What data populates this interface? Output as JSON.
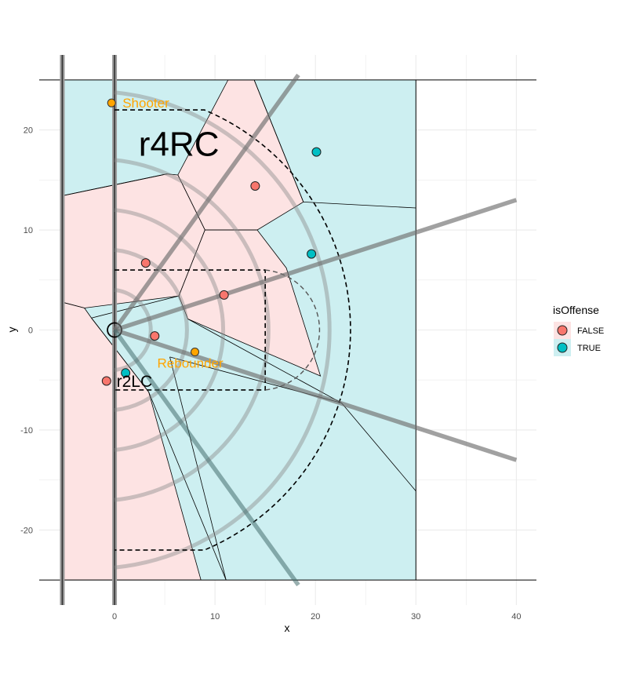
{
  "chart_data": {
    "type": "scatter",
    "xlabel": "x",
    "ylabel": "y",
    "xlim": [
      -7.5,
      42
    ],
    "ylim": [
      -27.5,
      27.5
    ],
    "x_ticks": [
      0,
      10,
      20,
      30,
      40
    ],
    "y_ticks": [
      -20,
      -10,
      0,
      10,
      20
    ],
    "grid": true,
    "legend": {
      "title": "isOffense",
      "position": "right",
      "entries": [
        {
          "label": "FALSE",
          "fill": "#f8766d",
          "shade": "#fde3e3"
        },
        {
          "label": "TRUE",
          "fill": "#00bfc4",
          "shade": "#cdeff1"
        }
      ]
    },
    "points": [
      {
        "x": 14.0,
        "y": 14.4,
        "isOffense": "FALSE"
      },
      {
        "x": 3.1,
        "y": 6.7,
        "isOffense": "FALSE"
      },
      {
        "x": 10.9,
        "y": 3.5,
        "isOffense": "FALSE"
      },
      {
        "x": 4.0,
        "y": -0.6,
        "isOffense": "FALSE"
      },
      {
        "x": -0.8,
        "y": -5.1,
        "isOffense": "FALSE"
      },
      {
        "x": 20.1,
        "y": 17.8,
        "isOffense": "TRUE"
      },
      {
        "x": 19.6,
        "y": 7.6,
        "isOffense": "TRUE"
      },
      {
        "x": 1.1,
        "y": -4.3,
        "isOffense": "TRUE"
      }
    ],
    "highlights": [
      {
        "x": -0.3,
        "y": 22.7,
        "label": "Shooter",
        "color": "#ffa500"
      },
      {
        "x": 8.0,
        "y": -2.2,
        "label": "Rebounder",
        "color": "#ffa500"
      }
    ],
    "annotations": [
      {
        "text": "r4RC",
        "x": 2.4,
        "y": 17.4,
        "size": "large"
      },
      {
        "text": "r2LC",
        "x": 0.2,
        "y": -5.7,
        "size": "medium"
      }
    ],
    "voronoi": {
      "pink": [
        [
          [
            11.3,
            25
          ],
          [
            13.9,
            25
          ],
          [
            18.8,
            12.8
          ],
          [
            14.2,
            10.0
          ],
          [
            9.0,
            10.0
          ],
          [
            6.3,
            15.5
          ],
          [
            11.3,
            25
          ]
        ],
        [
          [
            -5.3,
            13.4
          ],
          [
            -5.3,
            2.8
          ],
          [
            -3.0,
            2.2
          ],
          [
            6.4,
            3.4
          ],
          [
            9.0,
            10.0
          ],
          [
            6.3,
            15.5
          ],
          [
            5.2,
            15.6
          ],
          [
            -5.3,
            13.4
          ]
        ],
        [
          [
            6.4,
            3.4
          ],
          [
            9.0,
            10.0
          ],
          [
            14.2,
            10.0
          ],
          [
            17.1,
            6.2
          ],
          [
            20.5,
            -4.6
          ],
          [
            7.3,
            1.1
          ],
          [
            6.4,
            3.4
          ]
        ],
        [
          [
            -5.3,
            2.8
          ],
          [
            -3.0,
            2.2
          ],
          [
            -2.3,
            1.2
          ],
          [
            3.4,
            -6.2
          ],
          [
            8.6,
            -25
          ],
          [
            -5.3,
            -25
          ],
          [
            -5.3,
            2.8
          ]
        ]
      ]
    },
    "lines": [
      {
        "x1": 0,
        "y1": 0,
        "x2": 18.3,
        "y2": 25.5,
        "style": "thick-gray"
      },
      {
        "x1": 0,
        "y1": 0,
        "x2": 40,
        "y2": 13.0,
        "style": "thick-gray"
      },
      {
        "x1": 0,
        "y1": 0,
        "x2": 40,
        "y2": -13.0,
        "style": "thick-gray"
      },
      {
        "x1": 0,
        "y1": 0,
        "x2": 18.3,
        "y2": -25.5,
        "style": "thick-teal"
      }
    ],
    "court": {
      "baseline_x": [
        -5.2,
        0
      ],
      "sideline_y": [
        -25,
        25
      ],
      "halfcourt_x": 30,
      "paint": [
        [
          0,
          6
        ],
        [
          15,
          6
        ],
        [
          15,
          -6
        ],
        [
          0,
          -6
        ]
      ],
      "three_point_corner_y": 22,
      "three_point_radius": 23.75,
      "free_throw_circle": {
        "cx": 15,
        "cy": 0,
        "r": 6
      }
    }
  }
}
